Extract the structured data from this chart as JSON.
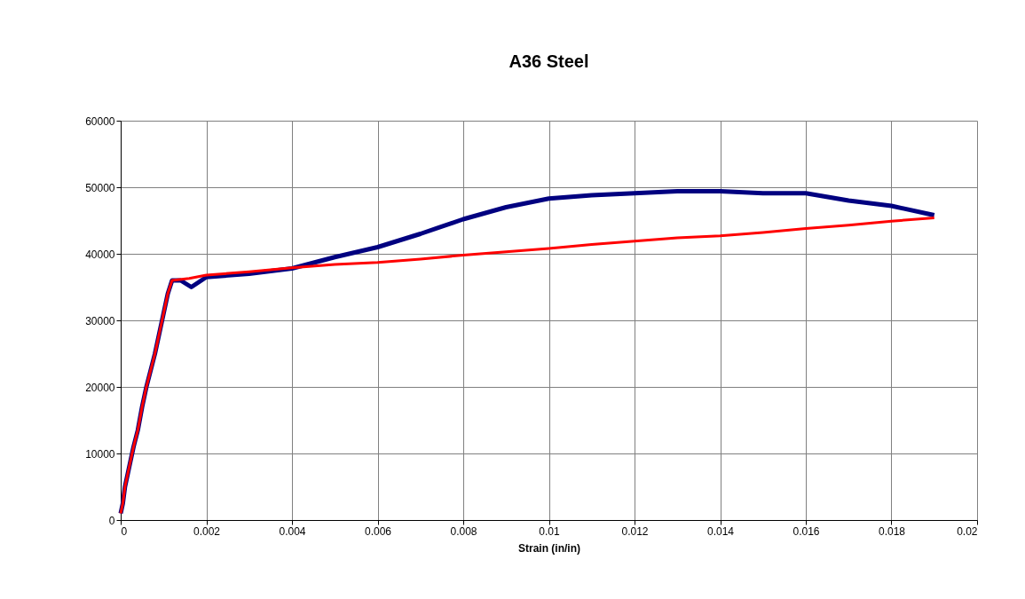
{
  "chart_data": {
    "type": "line",
    "title": "A36 Steel",
    "xlabel": "Strain (in/in)",
    "xlim": [
      0,
      0.02
    ],
    "xticks": [
      0,
      0.002,
      0.004,
      0.006,
      0.008,
      0.01,
      0.012,
      0.014,
      0.016,
      0.018,
      0.02
    ],
    "ylim": [
      0,
      60000
    ],
    "yticks": [
      0,
      10000,
      20000,
      30000,
      40000,
      50000,
      60000
    ],
    "grid": true,
    "marker": "none",
    "line_style": "solid",
    "series": [
      {
        "color": "#000080",
        "x": [
          0,
          5e-05,
          0.0001,
          0.0002,
          0.0003,
          0.0004,
          0.0005,
          0.0006,
          0.0007,
          0.0008,
          0.0009,
          0.001,
          0.0011,
          0.0012,
          0.0014,
          0.00165,
          0.002,
          0.003,
          0.004,
          0.005,
          0.006,
          0.007,
          0.008,
          0.009,
          0.01,
          0.011,
          0.012,
          0.013,
          0.014,
          0.015,
          0.016,
          0.017,
          0.018,
          0.019
        ],
        "values": [
          1000,
          2500,
          5000,
          8000,
          11000,
          13500,
          17000,
          20000,
          22500,
          25000,
          28000,
          31000,
          34000,
          36000,
          36000,
          35000,
          36500,
          37000,
          37800,
          39500,
          41000,
          43000,
          45200,
          47000,
          48300,
          48800,
          49100,
          49400,
          49400,
          49100,
          49100,
          48000,
          47200,
          45800
        ]
      },
      {
        "color": "#ff0000",
        "x": [
          0,
          5e-05,
          0.0001,
          0.0002,
          0.0003,
          0.0004,
          0.0005,
          0.0006,
          0.0007,
          0.0008,
          0.0009,
          0.001,
          0.0011,
          0.0012,
          0.0016,
          0.002,
          0.003,
          0.004,
          0.005,
          0.006,
          0.007,
          0.008,
          0.009,
          0.01,
          0.011,
          0.012,
          0.013,
          0.014,
          0.015,
          0.016,
          0.017,
          0.018,
          0.019
        ],
        "values": [
          1000,
          2500,
          5000,
          8000,
          11000,
          13500,
          17000,
          20000,
          22500,
          25000,
          28000,
          31000,
          34000,
          36000,
          36300,
          36800,
          37300,
          37900,
          38400,
          38700,
          39200,
          39800,
          40300,
          40800,
          41400,
          41900,
          42400,
          42700,
          43200,
          43800,
          44300,
          44900,
          45400
        ]
      }
    ]
  }
}
